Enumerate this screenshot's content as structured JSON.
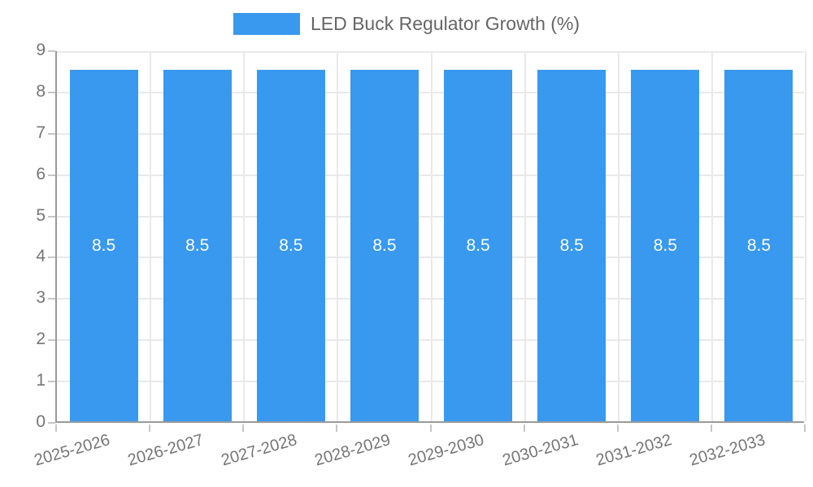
{
  "chart_data": {
    "type": "bar",
    "title": "LED Buck Regulator Growth (%)",
    "categories": [
      "2025-2026",
      "2026-2027",
      "2027-2028",
      "2028-2029",
      "2029-2030",
      "2030-2031",
      "2031-2032",
      "2032-2033"
    ],
    "values": [
      8.5,
      8.5,
      8.5,
      8.5,
      8.5,
      8.5,
      8.5,
      8.5
    ],
    "value_labels": [
      "8.5",
      "8.5",
      "8.5",
      "8.5",
      "8.5",
      "8.5",
      "8.5",
      "8.5"
    ],
    "xlabel": "",
    "ylabel": "",
    "ylim": [
      0,
      9
    ],
    "yticks": [
      0,
      1,
      2,
      3,
      4,
      5,
      6,
      7,
      8,
      9
    ],
    "grid": true,
    "legend_position": "top"
  },
  "colors": {
    "bar": "#3899ee",
    "bar_value_label": "#ffffff",
    "axis_text": "#757575",
    "legend_text": "#666666",
    "grid_line": "#e9e9e9",
    "axis_line": "#9a9a9a",
    "tick_mark": "#c6c6c6",
    "background": "#ffffff"
  }
}
